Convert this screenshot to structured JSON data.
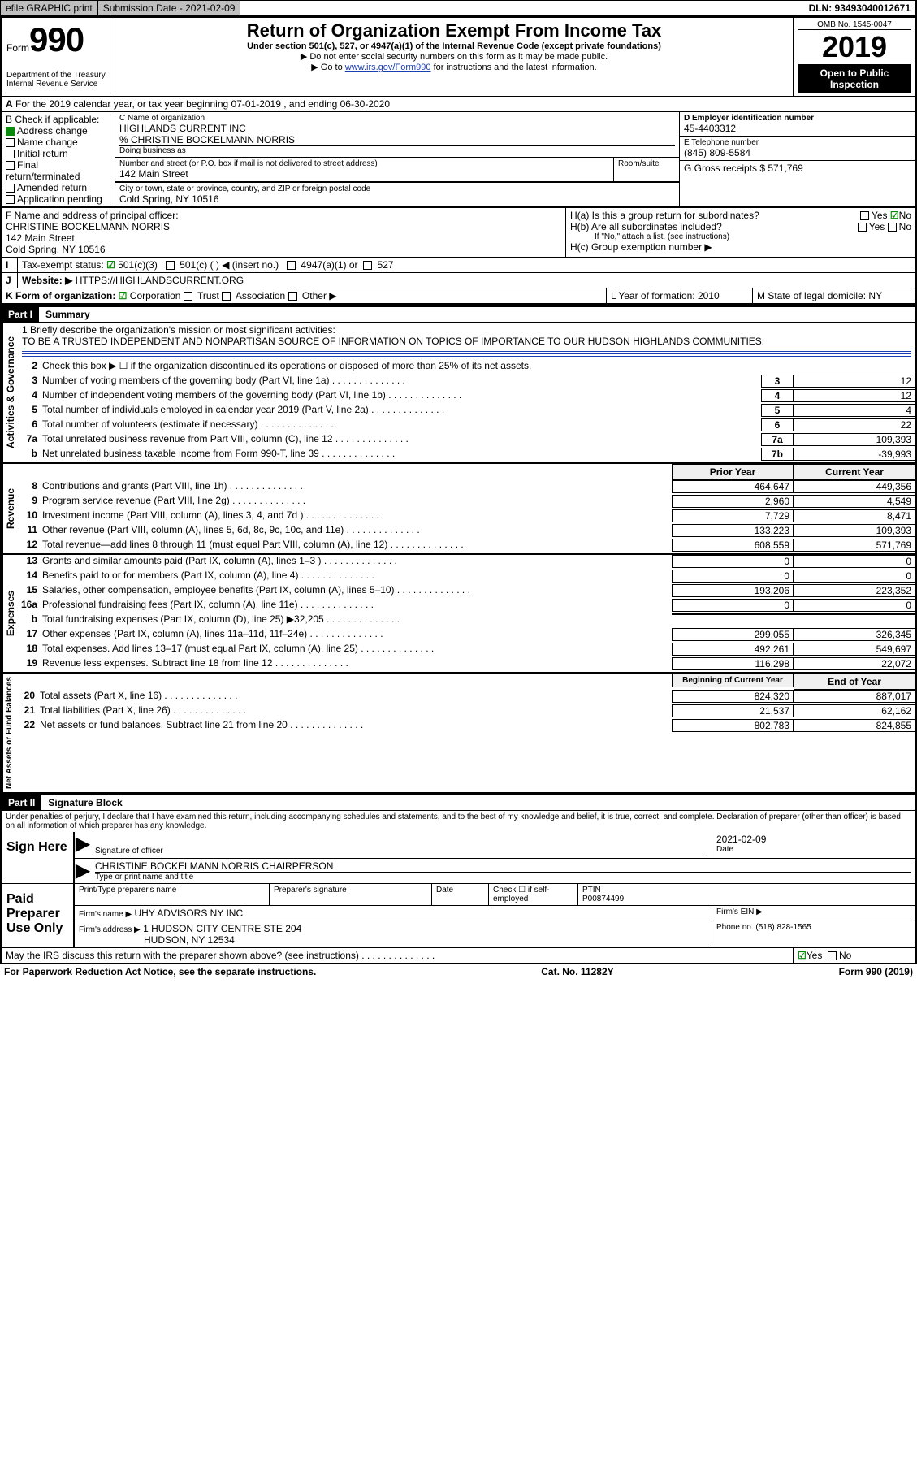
{
  "topbar": {
    "efile": "efile GRAPHIC print",
    "submission_label": "Submission Date - 2021-02-09",
    "dln": "DLN: 93493040012671"
  },
  "omb": "OMB No. 1545-0047",
  "form_no": "990",
  "form_word": "Form",
  "dept": "Department of the Treasury\nInternal Revenue Service",
  "year": "2019",
  "open_inspection": "Open to Public Inspection",
  "title": "Return of Organization Exempt From Income Tax",
  "subtitle": "Under section 501(c), 527, or 4947(a)(1) of the Internal Revenue Code (except private foundations)",
  "note1": "▶ Do not enter social security numbers on this form as it may be made public.",
  "note2_pre": "▶ Go to ",
  "note2_link": "www.irs.gov/Form990",
  "note2_post": " for instructions and the latest information.",
  "periodA": "For the 2019 calendar year, or tax year beginning 07-01-2019    , and ending 06-30-2020",
  "boxB": {
    "label": "B Check if applicable:",
    "items": [
      {
        "text": "Address change",
        "checked": true
      },
      {
        "text": "Name change",
        "checked": false
      },
      {
        "text": "Initial return",
        "checked": false
      },
      {
        "text": "Final return/terminated",
        "checked": false
      },
      {
        "text": "Amended return",
        "checked": false
      },
      {
        "text": "Application pending",
        "checked": false
      }
    ]
  },
  "boxC": {
    "name_label": "C Name of organization",
    "name": "HIGHLANDS CURRENT INC",
    "care_of": "% CHRISTINE BOCKELMANN NORRIS",
    "dba_label": "Doing business as",
    "addr_label": "Number and street (or P.O. box if mail is not delivered to street address)",
    "room_label": "Room/suite",
    "addr": "142 Main Street",
    "city_label": "City or town, state or province, country, and ZIP or foreign postal code",
    "city": "Cold Spring, NY  10516"
  },
  "boxD": {
    "label": "D Employer identification number",
    "val": "45-4403312"
  },
  "boxE": {
    "label": "E Telephone number",
    "val": "(845) 809-5584"
  },
  "boxG": {
    "label": "G Gross receipts $ 571,769"
  },
  "boxF": {
    "label": "F  Name and address of principal officer:",
    "name": "CHRISTINE BOCKELMANN NORRIS",
    "addr1": "142 Main Street",
    "addr2": "Cold Spring, NY  10516"
  },
  "boxH": {
    "a": "H(a)  Is this a group return for subordinates?",
    "a_no": true,
    "b": "H(b)  Are all subordinates included?",
    "b_note": "If \"No,\" attach a list. (see instructions)",
    "c": "H(c)  Group exemption number ▶"
  },
  "boxI": {
    "label": "Tax-exempt status:",
    "opts": [
      "501(c)(3)",
      "501(c) (   ) ◀ (insert no.)",
      "4947(a)(1) or",
      "527"
    ]
  },
  "boxJ": {
    "label": "J",
    "text": "Website: ▶",
    "val": "HTTPS://HIGHLANDSCURRENT.ORG"
  },
  "boxK": {
    "label": "K Form of organization:",
    "opts": [
      "Corporation",
      "Trust",
      "Association",
      "Other ▶"
    ]
  },
  "boxL": {
    "label": "L Year of formation: 2010"
  },
  "boxM": {
    "label": "M State of legal domicile: NY"
  },
  "part1": {
    "num": "Part I",
    "title": "Summary"
  },
  "mission": {
    "lead": "1   Briefly describe the organization's mission or most significant activities:",
    "text": "TO BE A TRUSTED INDEPENDENT AND NONPARTISAN SOURCE OF INFORMATION ON TOPICS OF IMPORTANCE TO OUR HUDSON HIGHLANDS COMMUNITIES."
  },
  "line2": "Check this box ▶ ☐  if the organization discontinued its operations or disposed of more than 25% of its net assets.",
  "act_lines": [
    {
      "n": "3",
      "d": "Number of voting members of the governing body (Part VI, line 1a)",
      "box": "3",
      "v": "12"
    },
    {
      "n": "4",
      "d": "Number of independent voting members of the governing body (Part VI, line 1b)",
      "box": "4",
      "v": "12"
    },
    {
      "n": "5",
      "d": "Total number of individuals employed in calendar year 2019 (Part V, line 2a)",
      "box": "5",
      "v": "4"
    },
    {
      "n": "6",
      "d": "Total number of volunteers (estimate if necessary)",
      "box": "6",
      "v": "22"
    },
    {
      "n": "7a",
      "d": "Total unrelated business revenue from Part VIII, column (C), line 12",
      "box": "7a",
      "v": "109,393"
    },
    {
      "n": "b",
      "d": "Net unrelated business taxable income from Form 990-T, line 39",
      "box": "7b",
      "v": "-39,993"
    }
  ],
  "rev_hdr": {
    "py": "Prior Year",
    "cy": "Current Year"
  },
  "rev_lines": [
    {
      "n": "8",
      "d": "Contributions and grants (Part VIII, line 1h)",
      "py": "464,647",
      "cy": "449,356"
    },
    {
      "n": "9",
      "d": "Program service revenue (Part VIII, line 2g)",
      "py": "2,960",
      "cy": "4,549"
    },
    {
      "n": "10",
      "d": "Investment income (Part VIII, column (A), lines 3, 4, and 7d )",
      "py": "7,729",
      "cy": "8,471"
    },
    {
      "n": "11",
      "d": "Other revenue (Part VIII, column (A), lines 5, 6d, 8c, 9c, 10c, and 11e)",
      "py": "133,223",
      "cy": "109,393"
    },
    {
      "n": "12",
      "d": "Total revenue—add lines 8 through 11 (must equal Part VIII, column (A), line 12)",
      "py": "608,559",
      "cy": "571,769"
    }
  ],
  "exp_lines": [
    {
      "n": "13",
      "d": "Grants and similar amounts paid (Part IX, column (A), lines 1–3 )",
      "py": "0",
      "cy": "0"
    },
    {
      "n": "14",
      "d": "Benefits paid to or for members (Part IX, column (A), line 4)",
      "py": "0",
      "cy": "0"
    },
    {
      "n": "15",
      "d": "Salaries, other compensation, employee benefits (Part IX, column (A), lines 5–10)",
      "py": "193,206",
      "cy": "223,352"
    },
    {
      "n": "16a",
      "d": "Professional fundraising fees (Part IX, column (A), line 11e)",
      "py": "0",
      "cy": "0"
    },
    {
      "n": "b",
      "d": "Total fundraising expenses (Part IX, column (D), line 25) ▶32,205",
      "py": "",
      "cy": "",
      "shade": true
    },
    {
      "n": "17",
      "d": "Other expenses (Part IX, column (A), lines 11a–11d, 11f–24e)",
      "py": "299,055",
      "cy": "326,345"
    },
    {
      "n": "18",
      "d": "Total expenses. Add lines 13–17 (must equal Part IX, column (A), line 25)",
      "py": "492,261",
      "cy": "549,697"
    },
    {
      "n": "19",
      "d": "Revenue less expenses. Subtract line 18 from line 12",
      "py": "116,298",
      "cy": "22,072"
    }
  ],
  "na_hdr": {
    "py": "Beginning of Current Year",
    "cy": "End of Year"
  },
  "na_lines": [
    {
      "n": "20",
      "d": "Total assets (Part X, line 16)",
      "py": "824,320",
      "cy": "887,017"
    },
    {
      "n": "21",
      "d": "Total liabilities (Part X, line 26)",
      "py": "21,537",
      "cy": "62,162"
    },
    {
      "n": "22",
      "d": "Net assets or fund balances. Subtract line 21 from line 20",
      "py": "802,783",
      "cy": "824,855"
    }
  ],
  "part2": {
    "num": "Part II",
    "title": "Signature Block"
  },
  "penalties": "Under penalties of perjury, I declare that I have examined this return, including accompanying schedules and statements, and to the best of my knowledge and belief, it is true, correct, and complete. Declaration of preparer (other than officer) is based on all information of which preparer has any knowledge.",
  "sign": {
    "here": "Sign Here",
    "sig_label": "Signature of officer",
    "date_label": "Date",
    "date_val": "2021-02-09",
    "name": "CHRISTINE BOCKELMANN NORRIS  CHAIRPERSON",
    "name_label": "Type or print name and title"
  },
  "paid": {
    "side": "Paid Preparer Use Only",
    "h1": "Print/Type preparer's name",
    "h2": "Preparer's signature",
    "h3": "Date",
    "h4": "Check ☐  if self-employed",
    "h5": "PTIN",
    "ptin": "P00874499",
    "firm_label": "Firm's name     ▶",
    "firm": "UHY ADVISORS NY INC",
    "ein_label": "Firm's EIN ▶",
    "addr_label": "Firm's address ▶",
    "addr1": "1 HUDSON CITY CENTRE STE 204",
    "addr2": "HUDSON, NY  12534",
    "phone_label": "Phone no. (518) 828-1565"
  },
  "discuss": "May the IRS discuss this return with the preparer shown above? (see instructions)",
  "discuss_yes": "Yes",
  "discuss_no": "No",
  "footer": {
    "left": "For Paperwork Reduction Act Notice, see the separate instructions.",
    "mid": "Cat. No. 11282Y",
    "right": "Form 990 (2019)"
  },
  "side_labels": {
    "act": "Activities & Governance",
    "rev": "Revenue",
    "exp": "Expenses",
    "na": "Net Assets or Fund Balances"
  },
  "yes": "Yes",
  "no": "No"
}
